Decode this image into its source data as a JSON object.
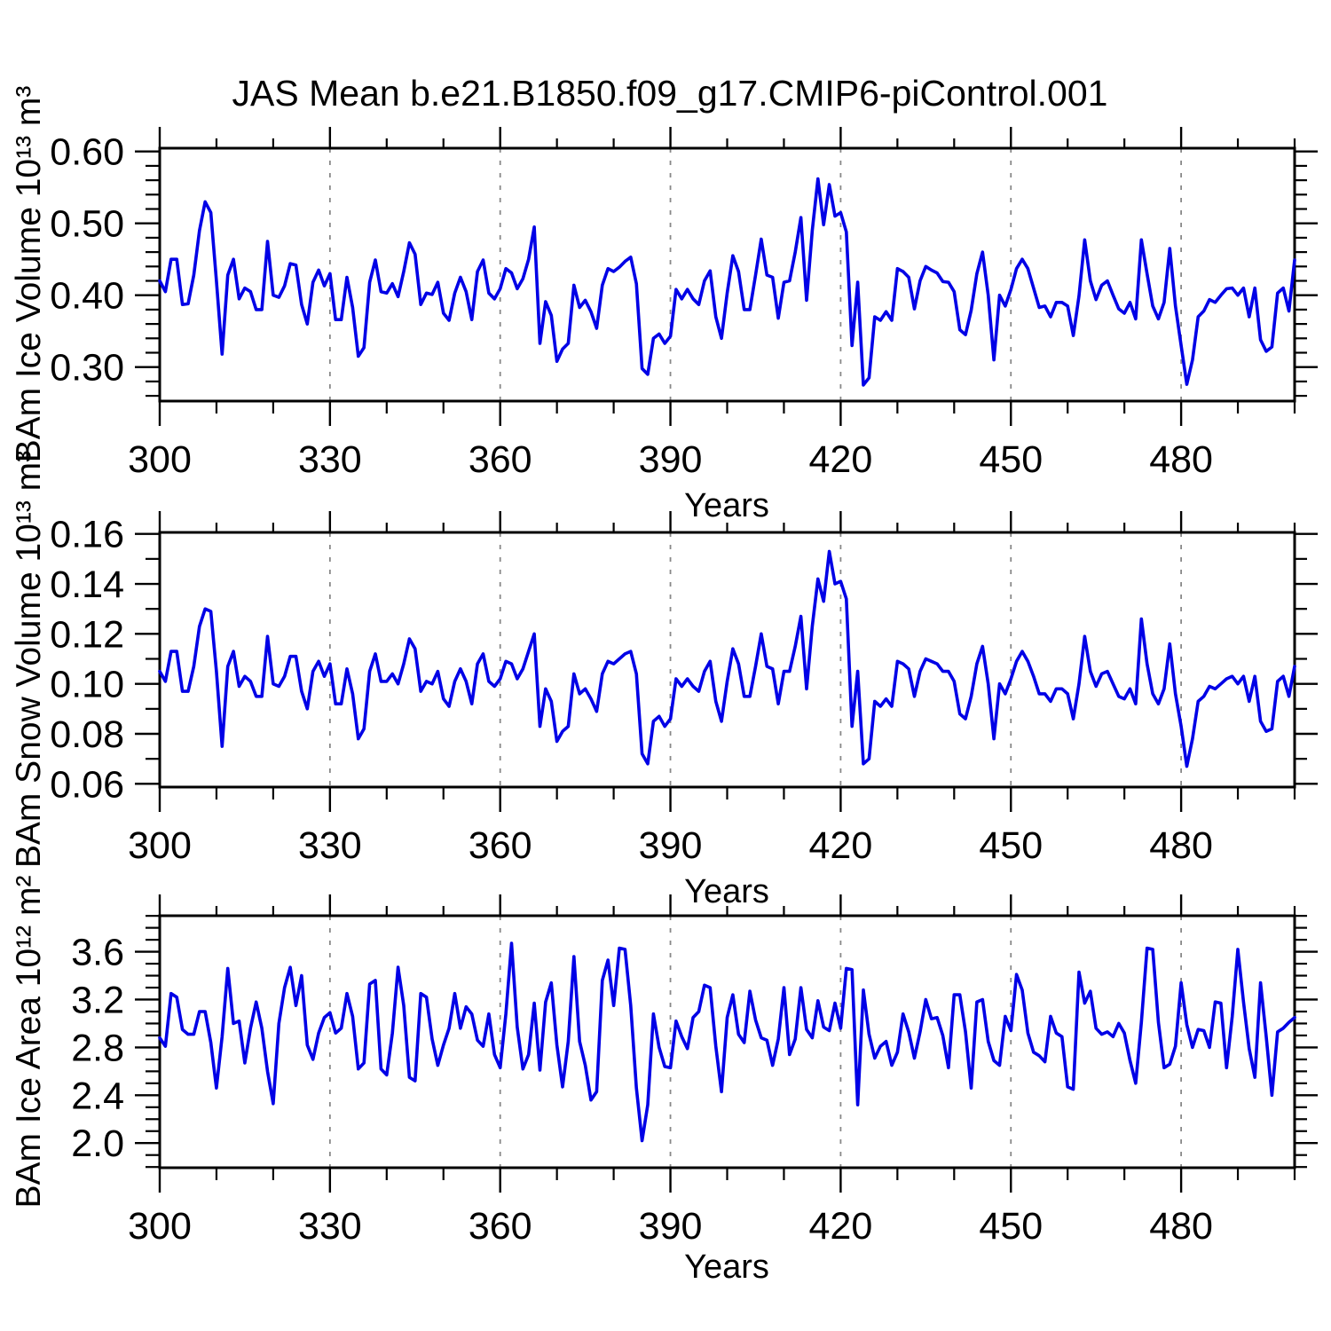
{
  "title": "JAS Mean b.e21.B1850.f09_g17.CMIP6-piControl.001",
  "style": {
    "line_color": "#0000E6",
    "grid_color": "#888888",
    "axis_color": "#000000",
    "background": "#ffffff",
    "text_color": "#000000"
  },
  "x_axis": {
    "label": "Years",
    "range": [
      300,
      500
    ],
    "tick_values": [
      300,
      330,
      360,
      390,
      420,
      450,
      480
    ],
    "tick_labels": [
      "300",
      "330",
      "360",
      "390",
      "420",
      "450",
      "480"
    ],
    "minor_step": 10,
    "grid_years": [
      330,
      360,
      390,
      420,
      450,
      480
    ]
  },
  "chart_data": [
    {
      "type": "line",
      "title": "JAS Mean b.e21.B1850.f09_g17.CMIP6-piControl.001",
      "xlabel": "Years",
      "ylabel": "BAm Ice Volume 10¹³ m³",
      "ylim": [
        0.2527,
        0.6046
      ],
      "y_tick_values": [
        0.3,
        0.4,
        0.5,
        0.6
      ],
      "y_tick_labels": [
        "0.30",
        "0.40",
        "0.50",
        "0.60"
      ],
      "y_minor_step": 0.02,
      "x_start": 300,
      "x_step": 1,
      "values": [
        0.42,
        0.405,
        0.45,
        0.45,
        0.387,
        0.388,
        0.428,
        0.49,
        0.53,
        0.515,
        0.42,
        0.318,
        0.428,
        0.45,
        0.395,
        0.41,
        0.405,
        0.38,
        0.38,
        0.475,
        0.4,
        0.397,
        0.413,
        0.444,
        0.442,
        0.387,
        0.36,
        0.418,
        0.435,
        0.413,
        0.43,
        0.366,
        0.366,
        0.425,
        0.383,
        0.315,
        0.327,
        0.418,
        0.449,
        0.405,
        0.403,
        0.416,
        0.398,
        0.433,
        0.473,
        0.457,
        0.387,
        0.403,
        0.401,
        0.418,
        0.375,
        0.365,
        0.403,
        0.425,
        0.405,
        0.366,
        0.433,
        0.449,
        0.403,
        0.395,
        0.409,
        0.437,
        0.431,
        0.409,
        0.423,
        0.45,
        0.495,
        0.333,
        0.391,
        0.372,
        0.308,
        0.325,
        0.333,
        0.414,
        0.383,
        0.393,
        0.377,
        0.354,
        0.414,
        0.437,
        0.433,
        0.439,
        0.447,
        0.453,
        0.416,
        0.298,
        0.29,
        0.34,
        0.346,
        0.333,
        0.343,
        0.408,
        0.395,
        0.408,
        0.395,
        0.387,
        0.42,
        0.434,
        0.37,
        0.34,
        0.403,
        0.455,
        0.433,
        0.38,
        0.38,
        0.428,
        0.478,
        0.428,
        0.425,
        0.368,
        0.418,
        0.42,
        0.46,
        0.508,
        0.393,
        0.49,
        0.562,
        0.498,
        0.554,
        0.51,
        0.515,
        0.488,
        0.33,
        0.418,
        0.275,
        0.285,
        0.37,
        0.365,
        0.377,
        0.365,
        0.437,
        0.433,
        0.425,
        0.381,
        0.42,
        0.44,
        0.435,
        0.431,
        0.419,
        0.418,
        0.405,
        0.352,
        0.345,
        0.379,
        0.43,
        0.46,
        0.4,
        0.31,
        0.4,
        0.385,
        0.408,
        0.437,
        0.45,
        0.437,
        0.41,
        0.383,
        0.385,
        0.37,
        0.39,
        0.39,
        0.385,
        0.344,
        0.399,
        0.477,
        0.42,
        0.394,
        0.414,
        0.42,
        0.4,
        0.381,
        0.375,
        0.39,
        0.367,
        0.477,
        0.43,
        0.385,
        0.367,
        0.39,
        0.465,
        0.385,
        0.33,
        0.276,
        0.31,
        0.37,
        0.378,
        0.394,
        0.39,
        0.4,
        0.409,
        0.41,
        0.4,
        0.41,
        0.37,
        0.41,
        0.338,
        0.322,
        0.328,
        0.403,
        0.41,
        0.378,
        0.449
      ]
    },
    {
      "type": "line",
      "title": "JAS Mean b.e21.B1850.f09_g17.CMIP6-piControl.001",
      "xlabel": "Years",
      "ylabel": "BAm Snow Volume 10¹³ m³",
      "ylim": [
        0.0587,
        0.1606
      ],
      "y_tick_values": [
        0.06,
        0.08,
        0.1,
        0.12,
        0.14,
        0.16
      ],
      "y_tick_labels": [
        "0.06",
        "0.08",
        "0.10",
        "0.12",
        "0.14",
        "0.16"
      ],
      "y_minor_step": 0.01,
      "x_start": 300,
      "x_step": 1,
      "values": [
        0.105,
        0.101,
        0.113,
        0.113,
        0.097,
        0.097,
        0.107,
        0.123,
        0.13,
        0.129,
        0.105,
        0.075,
        0.107,
        0.113,
        0.099,
        0.103,
        0.101,
        0.095,
        0.095,
        0.119,
        0.1,
        0.099,
        0.103,
        0.111,
        0.111,
        0.097,
        0.09,
        0.105,
        0.109,
        0.103,
        0.108,
        0.092,
        0.092,
        0.106,
        0.096,
        0.078,
        0.082,
        0.105,
        0.112,
        0.101,
        0.101,
        0.104,
        0.1,
        0.108,
        0.118,
        0.114,
        0.097,
        0.101,
        0.1,
        0.105,
        0.094,
        0.091,
        0.101,
        0.106,
        0.101,
        0.092,
        0.108,
        0.112,
        0.101,
        0.099,
        0.102,
        0.109,
        0.108,
        0.102,
        0.106,
        0.113,
        0.12,
        0.083,
        0.098,
        0.093,
        0.077,
        0.081,
        0.083,
        0.104,
        0.096,
        0.098,
        0.094,
        0.089,
        0.104,
        0.109,
        0.108,
        0.11,
        0.112,
        0.113,
        0.104,
        0.072,
        0.068,
        0.085,
        0.087,
        0.083,
        0.086,
        0.102,
        0.099,
        0.102,
        0.099,
        0.097,
        0.105,
        0.109,
        0.093,
        0.085,
        0.101,
        0.114,
        0.108,
        0.095,
        0.095,
        0.107,
        0.12,
        0.107,
        0.106,
        0.092,
        0.105,
        0.105,
        0.115,
        0.127,
        0.098,
        0.123,
        0.142,
        0.133,
        0.153,
        0.14,
        0.141,
        0.134,
        0.083,
        0.105,
        0.068,
        0.07,
        0.093,
        0.091,
        0.094,
        0.091,
        0.109,
        0.108,
        0.106,
        0.095,
        0.105,
        0.11,
        0.109,
        0.108,
        0.105,
        0.105,
        0.101,
        0.088,
        0.086,
        0.095,
        0.108,
        0.115,
        0.1,
        0.078,
        0.1,
        0.096,
        0.102,
        0.109,
        0.113,
        0.109,
        0.103,
        0.096,
        0.096,
        0.093,
        0.098,
        0.098,
        0.096,
        0.086,
        0.1,
        0.119,
        0.105,
        0.099,
        0.104,
        0.105,
        0.1,
        0.095,
        0.094,
        0.098,
        0.092,
        0.126,
        0.108,
        0.096,
        0.092,
        0.098,
        0.116,
        0.096,
        0.083,
        0.067,
        0.078,
        0.093,
        0.095,
        0.099,
        0.098,
        0.1,
        0.102,
        0.103,
        0.1,
        0.103,
        0.093,
        0.103,
        0.085,
        0.081,
        0.082,
        0.101,
        0.103,
        0.095,
        0.107
      ]
    },
    {
      "type": "line",
      "title": "JAS Mean b.e21.B1850.f09_g17.CMIP6-piControl.001",
      "xlabel": "Years",
      "ylabel": "BAm Ice Area 10¹² m²",
      "ylim": [
        1.794,
        3.901
      ],
      "y_tick_values": [
        2.0,
        2.4,
        2.8,
        3.2,
        3.6
      ],
      "y_tick_labels": [
        "2.0",
        "2.4",
        "2.8",
        "3.2",
        "3.6"
      ],
      "y_minor_step": 0.1,
      "x_start": 300,
      "x_step": 1,
      "values": [
        2.88,
        2.81,
        3.25,
        3.22,
        2.95,
        2.91,
        2.91,
        3.1,
        3.1,
        2.84,
        2.46,
        2.89,
        3.46,
        3.0,
        3.02,
        2.67,
        2.96,
        3.18,
        2.96,
        2.6,
        2.33,
        3.0,
        3.3,
        3.47,
        3.15,
        3.4,
        2.82,
        2.7,
        2.92,
        3.05,
        3.09,
        2.92,
        2.96,
        3.25,
        3.06,
        2.62,
        2.67,
        3.33,
        3.36,
        2.62,
        2.57,
        2.92,
        3.47,
        3.15,
        2.55,
        2.52,
        3.25,
        3.22,
        2.87,
        2.65,
        2.82,
        2.96,
        3.25,
        2.96,
        3.14,
        3.08,
        2.86,
        2.81,
        3.08,
        2.74,
        2.63,
        3.08,
        3.67,
        2.97,
        2.62,
        2.74,
        3.17,
        2.61,
        3.18,
        3.34,
        2.82,
        2.47,
        2.85,
        3.56,
        2.85,
        2.65,
        2.36,
        2.43,
        3.36,
        3.53,
        3.15,
        3.63,
        3.62,
        3.15,
        2.46,
        2.02,
        2.32,
        3.08,
        2.8,
        2.64,
        2.63,
        3.02,
        2.89,
        2.79,
        3.05,
        3.1,
        3.32,
        3.3,
        2.81,
        2.43,
        3.05,
        3.24,
        2.91,
        2.84,
        3.27,
        3.03,
        2.88,
        2.86,
        2.65,
        2.87,
        3.3,
        2.74,
        2.87,
        3.3,
        2.95,
        2.88,
        3.19,
        2.97,
        2.94,
        3.17,
        2.96,
        3.46,
        3.45,
        2.32,
        3.28,
        2.91,
        2.71,
        2.81,
        2.85,
        2.65,
        2.76,
        3.08,
        2.93,
        2.71,
        2.93,
        3.2,
        3.04,
        3.05,
        2.9,
        2.63,
        3.24,
        3.24,
        2.93,
        2.46,
        3.18,
        3.2,
        2.85,
        2.69,
        2.65,
        3.06,
        2.94,
        3.41,
        3.28,
        2.92,
        2.76,
        2.73,
        2.68,
        3.06,
        2.92,
        2.89,
        2.47,
        2.45,
        3.43,
        3.17,
        3.27,
        2.96,
        2.91,
        2.93,
        2.89,
        3.0,
        2.92,
        2.69,
        2.5,
        3.01,
        3.63,
        3.62,
        3.01,
        2.63,
        2.66,
        2.81,
        3.34,
        2.99,
        2.8,
        2.95,
        2.94,
        2.8,
        3.18,
        3.17,
        2.63,
        3.06,
        3.62,
        3.18,
        2.79,
        2.55,
        3.34,
        2.89,
        2.4,
        2.93,
        2.96,
        3.01,
        3.05
      ]
    }
  ]
}
